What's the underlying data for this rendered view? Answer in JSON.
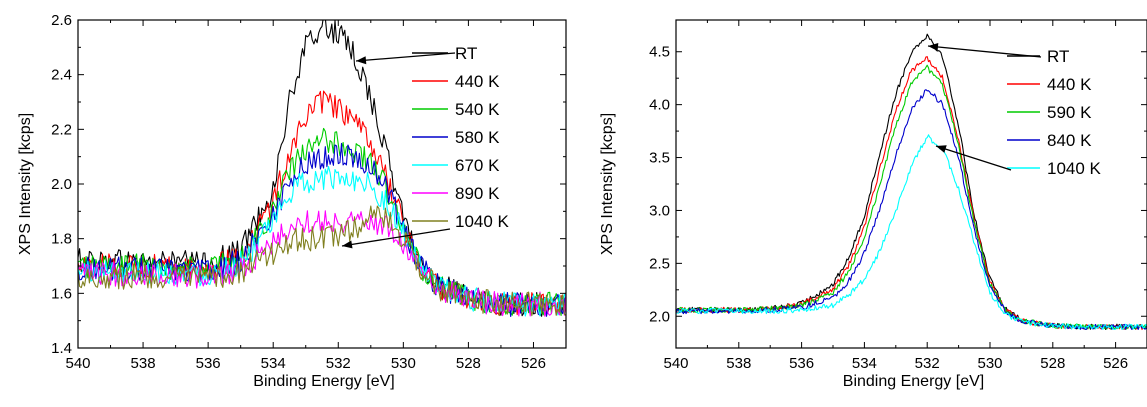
{
  "chart_data": [
    {
      "type": "line",
      "xlabel": "Binding Energy [eV]",
      "ylabel": "XPS Intensity [kcps]",
      "xlim": [
        540,
        525
      ],
      "ylim": [
        1.4,
        2.6
      ],
      "x_ticks": [
        "540",
        "538",
        "536",
        "534",
        "532",
        "530",
        "528",
        "526"
      ],
      "y_ticks": [
        "1.4",
        "1.6",
        "1.8",
        "2.0",
        "2.2",
        "2.4",
        "2.6"
      ],
      "grid": false,
      "legend_position": "top-right",
      "series": [
        {
          "name": "RT",
          "color": "#000000",
          "x": [
            540,
            538,
            536,
            535,
            534,
            533.5,
            533,
            532.5,
            532,
            531.5,
            531,
            530.5,
            530,
            529.5,
            529,
            528,
            527,
            526,
            525
          ],
          "y": [
            1.72,
            1.72,
            1.71,
            1.76,
            1.98,
            2.3,
            2.5,
            2.58,
            2.55,
            2.47,
            2.32,
            2.1,
            1.88,
            1.72,
            1.64,
            1.58,
            1.56,
            1.56,
            1.56
          ]
        },
        {
          "name": "440 K",
          "color": "#ff0000",
          "x": [
            540,
            538,
            536,
            535,
            534,
            533.5,
            533,
            532.5,
            532,
            531.5,
            531,
            530.5,
            530,
            529.5,
            529,
            528,
            527,
            526,
            525
          ],
          "y": [
            1.7,
            1.7,
            1.69,
            1.73,
            1.93,
            2.12,
            2.25,
            2.3,
            2.28,
            2.22,
            2.15,
            2.02,
            1.85,
            1.71,
            1.63,
            1.58,
            1.56,
            1.56,
            1.56
          ]
        },
        {
          "name": "540 K",
          "color": "#00cc00",
          "x": [
            540,
            538,
            536,
            535,
            534,
            533.5,
            533,
            532.5,
            532,
            531.5,
            531,
            530.5,
            530,
            529.5,
            529,
            528,
            527,
            526,
            525
          ],
          "y": [
            1.7,
            1.7,
            1.69,
            1.72,
            1.9,
            2.05,
            2.12,
            2.16,
            2.15,
            2.12,
            2.08,
            1.98,
            1.83,
            1.7,
            1.63,
            1.58,
            1.56,
            1.56,
            1.56
          ]
        },
        {
          "name": "580 K",
          "color": "#0000cc",
          "x": [
            540,
            538,
            536,
            535,
            534,
            533.5,
            533,
            532.5,
            532,
            531.5,
            531,
            530.5,
            530,
            529.5,
            529,
            528,
            527,
            526,
            525
          ],
          "y": [
            1.69,
            1.69,
            1.68,
            1.72,
            1.88,
            2.02,
            2.07,
            2.1,
            2.11,
            2.1,
            2.07,
            1.98,
            1.84,
            1.71,
            1.63,
            1.58,
            1.56,
            1.56,
            1.56
          ]
        },
        {
          "name": "670 K",
          "color": "#00ffff",
          "x": [
            540,
            538,
            536,
            535,
            534,
            533.5,
            533,
            532.5,
            532,
            531.5,
            531,
            530.5,
            530,
            529.5,
            529,
            528,
            527,
            526,
            525
          ],
          "y": [
            1.68,
            1.68,
            1.67,
            1.71,
            1.85,
            1.97,
            2.01,
            2.02,
            2.02,
            2.02,
            2.0,
            1.93,
            1.82,
            1.7,
            1.63,
            1.58,
            1.56,
            1.56,
            1.56
          ]
        },
        {
          "name": "890 K",
          "color": "#ff00ff",
          "x": [
            540,
            538,
            536,
            535,
            534,
            533.5,
            533,
            532.5,
            532,
            531.5,
            531,
            530.5,
            530,
            529.5,
            529,
            528,
            527,
            526,
            525
          ],
          "y": [
            1.67,
            1.67,
            1.66,
            1.69,
            1.78,
            1.84,
            1.86,
            1.87,
            1.86,
            1.87,
            1.87,
            1.84,
            1.78,
            1.69,
            1.62,
            1.58,
            1.56,
            1.56,
            1.56
          ]
        },
        {
          "name": "1040 K",
          "color": "#808020",
          "x": [
            540,
            538,
            536,
            535,
            534,
            533.5,
            533,
            532.5,
            532,
            531.5,
            531,
            530.5,
            530,
            529.5,
            529,
            528,
            527,
            526,
            525
          ],
          "y": [
            1.66,
            1.66,
            1.65,
            1.68,
            1.75,
            1.79,
            1.8,
            1.8,
            1.81,
            1.84,
            1.88,
            1.87,
            1.8,
            1.7,
            1.62,
            1.58,
            1.56,
            1.56,
            1.55
          ]
        }
      ]
    },
    {
      "type": "line",
      "xlabel": "Binding Energy [eV]",
      "ylabel": "XPS Intensity [kcps]",
      "xlim": [
        540,
        525
      ],
      "ylim": [
        1.7,
        4.8
      ],
      "x_ticks": [
        "540",
        "538",
        "536",
        "534",
        "532",
        "530",
        "528",
        "526"
      ],
      "y_ticks": [
        "2.0",
        "2.5",
        "3.0",
        "3.5",
        "4.0",
        "4.5"
      ],
      "grid": false,
      "legend_position": "top-right",
      "series": [
        {
          "name": "RT",
          "color": "#000000",
          "x": [
            540,
            538,
            537,
            536,
            535,
            534.5,
            534,
            533.5,
            533,
            532.5,
            532,
            531.5,
            531,
            530.5,
            530,
            529.5,
            529,
            528,
            527,
            526,
            525
          ],
          "y": [
            2.06,
            2.06,
            2.07,
            2.12,
            2.3,
            2.55,
            2.95,
            3.55,
            4.1,
            4.5,
            4.66,
            4.45,
            3.8,
            2.95,
            2.35,
            2.07,
            1.96,
            1.91,
            1.9,
            1.9,
            1.9
          ]
        },
        {
          "name": "440 K",
          "color": "#ff0000",
          "x": [
            540,
            538,
            537,
            536,
            535,
            534.5,
            534,
            533.5,
            533,
            532.5,
            532,
            531.5,
            531,
            530.5,
            530,
            529.5,
            529,
            528,
            527,
            526,
            525
          ],
          "y": [
            2.06,
            2.06,
            2.07,
            2.11,
            2.26,
            2.48,
            2.85,
            3.4,
            3.95,
            4.32,
            4.44,
            4.25,
            3.65,
            2.9,
            2.32,
            2.06,
            1.96,
            1.91,
            1.9,
            1.9,
            1.9
          ]
        },
        {
          "name": "590 K",
          "color": "#00cc00",
          "x": [
            540,
            538,
            537,
            536,
            535,
            534.5,
            534,
            533.5,
            533,
            532.5,
            532,
            531.5,
            531,
            530.5,
            530,
            529.5,
            529,
            528,
            527,
            526,
            525
          ],
          "y": [
            2.06,
            2.06,
            2.07,
            2.1,
            2.22,
            2.42,
            2.75,
            3.25,
            3.8,
            4.2,
            4.35,
            4.18,
            3.62,
            2.88,
            2.3,
            2.05,
            1.96,
            1.91,
            1.9,
            1.9,
            1.9
          ]
        },
        {
          "name": "840 K",
          "color": "#0000cc",
          "x": [
            540,
            538,
            537,
            536,
            535,
            534.5,
            534,
            533.5,
            533,
            532.5,
            532,
            531.5,
            531,
            530.5,
            530,
            529.5,
            529,
            528,
            527,
            526,
            525
          ],
          "y": [
            2.05,
            2.05,
            2.06,
            2.08,
            2.18,
            2.33,
            2.6,
            3.02,
            3.52,
            3.95,
            4.15,
            4.0,
            3.5,
            2.82,
            2.27,
            2.04,
            1.95,
            1.91,
            1.9,
            1.9,
            1.9
          ]
        },
        {
          "name": "1040 K",
          "color": "#00ffff",
          "x": [
            540,
            538,
            537,
            536,
            535,
            534.5,
            534,
            533.5,
            533,
            532.5,
            532,
            531.5,
            531,
            530.5,
            530,
            529.5,
            529,
            528,
            527,
            526,
            525
          ],
          "y": [
            2.05,
            2.05,
            2.05,
            2.06,
            2.1,
            2.2,
            2.35,
            2.62,
            3.0,
            3.42,
            3.7,
            3.58,
            3.2,
            2.7,
            2.22,
            2.02,
            1.95,
            1.91,
            1.9,
            1.9,
            1.9
          ]
        }
      ]
    }
  ]
}
